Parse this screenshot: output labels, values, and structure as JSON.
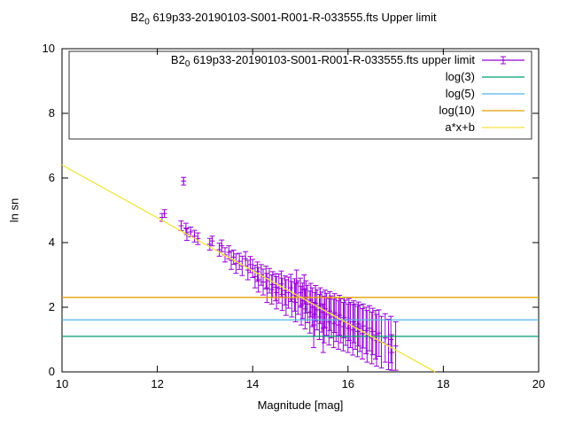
{
  "chart_data": {
    "type": "scatter",
    "title": "B2_0 619p33-20190103-S001-R001-R-033555.fts Upper limit",
    "title_parts": {
      "prefix": "B2",
      "sub": "0",
      "rest": " 619p33-20190103-S001-R001-R-033555.fts Upper limit"
    },
    "xlabel": "Magnitude [mag]",
    "ylabel": "ln sn",
    "xlim": [
      10,
      20
    ],
    "ylim": [
      0,
      10
    ],
    "xticks": [
      10,
      12,
      14,
      16,
      18,
      20
    ],
    "yticks": [
      0,
      2,
      4,
      6,
      8,
      10
    ],
    "grid": false,
    "legend_position": "top-right-box",
    "series": [
      {
        "name_parts": {
          "prefix": "B2",
          "sub": "0",
          "rest": " 619p33-20190103-S001-R001-R-033555.fts upper limit"
        },
        "type": "points_errorbars",
        "color": "#9400d3",
        "points": [
          [
            12.1,
            4.78,
            0.12
          ],
          [
            12.15,
            4.9,
            0.12
          ],
          [
            12.5,
            4.52,
            0.15
          ],
          [
            12.55,
            5.9,
            0.12
          ],
          [
            12.6,
            4.45,
            0.15
          ],
          [
            12.62,
            4.25,
            0.18
          ],
          [
            12.7,
            4.33,
            0.15
          ],
          [
            12.78,
            4.2,
            0.18
          ],
          [
            12.85,
            4.12,
            0.18
          ],
          [
            13.1,
            3.95,
            0.18
          ],
          [
            13.15,
            4.05,
            0.15
          ],
          [
            13.3,
            3.78,
            0.2
          ],
          [
            13.35,
            3.9,
            0.18
          ],
          [
            13.42,
            3.62,
            0.22
          ],
          [
            13.5,
            3.7,
            0.2
          ],
          [
            13.55,
            3.45,
            0.28
          ],
          [
            13.6,
            3.55,
            0.22
          ],
          [
            13.65,
            3.35,
            0.3
          ],
          [
            13.72,
            3.42,
            0.25
          ],
          [
            13.78,
            3.28,
            0.3
          ],
          [
            13.85,
            3.5,
            0.22
          ],
          [
            13.9,
            3.15,
            0.3
          ],
          [
            13.95,
            3.32,
            0.25
          ],
          [
            14.0,
            3.2,
            0.28
          ],
          [
            14.05,
            2.95,
            0.35
          ],
          [
            14.1,
            3.1,
            0.3
          ],
          [
            14.12,
            2.85,
            0.38
          ],
          [
            14.18,
            3.0,
            0.32
          ],
          [
            14.22,
            2.78,
            0.4
          ],
          [
            14.28,
            2.92,
            0.35
          ],
          [
            14.3,
            2.6,
            0.45
          ],
          [
            14.35,
            2.82,
            0.38
          ],
          [
            14.4,
            2.55,
            0.45
          ],
          [
            14.42,
            2.7,
            0.4
          ],
          [
            14.48,
            2.62,
            0.42
          ],
          [
            14.5,
            2.45,
            0.5
          ],
          [
            14.55,
            2.58,
            0.45
          ],
          [
            14.6,
            2.72,
            0.4
          ],
          [
            14.62,
            2.4,
            0.5
          ],
          [
            14.68,
            2.52,
            0.45
          ],
          [
            14.7,
            2.3,
            0.55
          ],
          [
            14.75,
            2.45,
            0.48
          ],
          [
            14.8,
            2.6,
            0.42
          ],
          [
            14.82,
            2.25,
            0.55
          ],
          [
            14.88,
            2.38,
            0.5
          ],
          [
            14.9,
            2.15,
            0.6
          ],
          [
            14.92,
            2.75,
            0.4
          ],
          [
            14.95,
            2.3,
            0.52
          ],
          [
            15.0,
            2.45,
            0.45
          ],
          [
            15.02,
            2.05,
            0.6
          ],
          [
            15.05,
            2.2,
            0.55
          ],
          [
            15.08,
            2.55,
            0.45
          ],
          [
            15.1,
            1.95,
            0.62
          ],
          [
            15.12,
            2.32,
            0.5
          ],
          [
            15.15,
            2.1,
            0.58
          ],
          [
            15.2,
            1.85,
            0.65
          ],
          [
            15.22,
            2.22,
            0.52
          ],
          [
            15.25,
            2.0,
            0.6
          ],
          [
            15.28,
            1.45,
            0.7
          ],
          [
            15.3,
            1.78,
            0.68
          ],
          [
            15.32,
            2.12,
            0.55
          ],
          [
            15.35,
            1.92,
            0.62
          ],
          [
            15.4,
            1.7,
            0.7
          ],
          [
            15.42,
            2.05,
            0.55
          ],
          [
            15.45,
            1.85,
            0.62
          ],
          [
            15.48,
            1.35,
            0.75
          ],
          [
            15.5,
            1.62,
            0.72
          ],
          [
            15.52,
            1.95,
            0.58
          ],
          [
            15.55,
            1.78,
            0.65
          ],
          [
            15.6,
            1.55,
            0.72
          ],
          [
            15.62,
            1.88,
            0.6
          ],
          [
            15.65,
            1.7,
            0.65
          ],
          [
            15.7,
            1.5,
            0.75
          ],
          [
            15.72,
            1.82,
            0.6
          ],
          [
            15.75,
            1.62,
            0.68
          ],
          [
            15.8,
            1.45,
            0.75
          ],
          [
            15.82,
            1.75,
            0.62
          ],
          [
            15.85,
            1.58,
            0.68
          ],
          [
            15.9,
            1.4,
            0.75
          ],
          [
            15.92,
            1.68,
            0.62
          ],
          [
            15.95,
            1.52,
            0.7
          ],
          [
            16.0,
            1.35,
            0.75
          ],
          [
            16.02,
            1.62,
            0.65
          ],
          [
            16.05,
            1.45,
            0.7
          ],
          [
            16.1,
            1.3,
            0.78
          ],
          [
            16.12,
            1.55,
            0.65
          ],
          [
            16.15,
            1.4,
            0.7
          ],
          [
            16.2,
            1.25,
            0.78
          ],
          [
            16.22,
            1.48,
            0.68
          ],
          [
            16.25,
            1.35,
            0.72
          ],
          [
            16.3,
            1.18,
            0.78
          ],
          [
            16.32,
            1.42,
            0.68
          ],
          [
            16.38,
            1.28,
            0.72
          ],
          [
            16.4,
            1.1,
            0.8
          ],
          [
            16.45,
            1.35,
            0.7
          ],
          [
            16.5,
            1.05,
            0.8
          ],
          [
            16.52,
            1.25,
            0.72
          ],
          [
            16.58,
            1.15,
            0.75
          ],
          [
            16.6,
            0.98,
            0.8
          ],
          [
            16.65,
            1.2,
            0.72
          ],
          [
            16.7,
            0.92,
            0.8
          ],
          [
            16.78,
            1.05,
            0.75
          ],
          [
            16.85,
            0.85,
            0.78
          ],
          [
            16.9,
            1.0,
            0.72
          ],
          [
            16.92,
            0.6,
            0.55
          ],
          [
            17.0,
            0.8,
            0.75
          ]
        ]
      },
      {
        "name": "log(3)",
        "type": "hline",
        "value": 1.0986,
        "color": "#009e73"
      },
      {
        "name": "log(5)",
        "type": "hline",
        "value": 1.6094,
        "color": "#56b4e9"
      },
      {
        "name": "log(10)",
        "type": "hline",
        "value": 2.3026,
        "color": "#e69f00"
      },
      {
        "name": "a*x+b",
        "type": "linear",
        "a": -0.8177,
        "b": 14.58,
        "color": "#f0e442"
      }
    ]
  }
}
